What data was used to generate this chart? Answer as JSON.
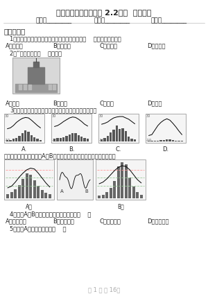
{
  "title": "人教版八年级上册地理 2.2气候  同步测试",
  "subtitle_fields": [
    "姓名：________",
    "班级：________",
    "成绩：________"
  ],
  "section1": "一、选择题",
  "q1": "1．我国长江中下游地区夏季的伏旱天气，多与（    ）还是密切相关。",
  "q1_options": [
    "A．东北风",
    "B．西北风",
    "C．东南风",
    "D．西南风"
  ],
  "q2": "2．“下图反映的（    ）的信息",
  "q2_options": [
    "A．气温",
    "B．降水",
    "C．风向",
    "D．气压"
  ],
  "q3": "3．读下列气温曲线和降水量柱状图，判断反应广州的是",
  "q4_intro": "读左图秦岭山脉南坡图及A、B两地站的气候资料柱图，完成下面小题。",
  "q4": "4．造成A、B两地降水不同的主要因素是（    ）",
  "q4_options": [
    "A．纬度因素",
    "B．地形因素",
    "C．海陆分布",
    "D．太阳辐射"
  ],
  "q5": "5．图中A地的气候类型是（    ）",
  "footer": "第 1 页 共 16页",
  "bg_color": "#ffffff",
  "text_color": "#333333",
  "title_fontsize": 9,
  "body_fontsize": 7
}
